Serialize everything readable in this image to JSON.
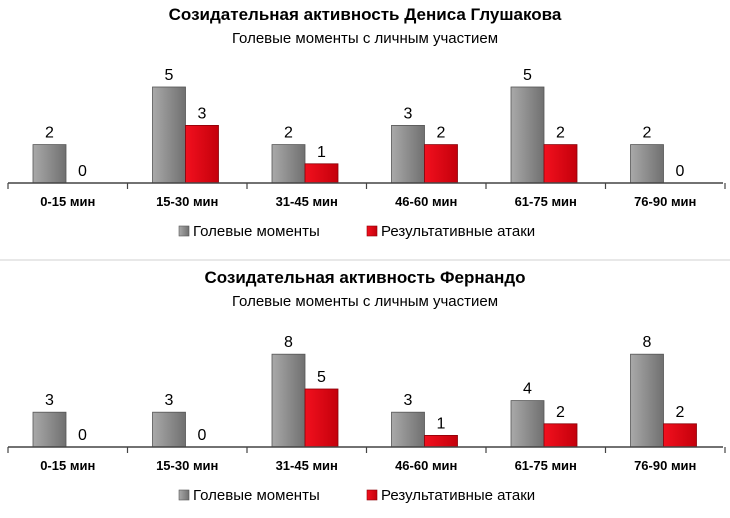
{
  "chart_data": [
    {
      "type": "bar",
      "title": "Созидательная активность Дениса Глушакова",
      "subtitle": "Голевые моменты с личным участием",
      "categories": [
        "0-15 мин",
        "15-30 мин",
        "31-45 мин",
        "46-60 мин",
        "61-75 мин",
        "76-90 мин"
      ],
      "series": [
        {
          "name": "Голевые моменты",
          "values": [
            2,
            5,
            2,
            3,
            5,
            2
          ],
          "color": "#8c8c8c"
        },
        {
          "name": "Результативные атаки",
          "values": [
            0,
            3,
            1,
            2,
            2,
            0
          ],
          "color": "#e3000f"
        }
      ],
      "ylim": [
        0,
        5
      ],
      "grid": false,
      "legend": "bottom"
    },
    {
      "type": "bar",
      "title": "Созидательная активность Фернандо",
      "subtitle": "Голевые моменты с личным участием",
      "categories": [
        "0-15 мин",
        "15-30 мин",
        "31-45 мин",
        "46-60 мин",
        "61-75 мин",
        "76-90 мин"
      ],
      "series": [
        {
          "name": "Голевые моменты",
          "values": [
            3,
            3,
            8,
            3,
            4,
            8
          ],
          "color": "#8c8c8c"
        },
        {
          "name": "Результативные атаки",
          "values": [
            0,
            0,
            5,
            1,
            2,
            2
          ],
          "color": "#e3000f"
        }
      ],
      "ylim": [
        0,
        8
      ],
      "grid": false,
      "legend": "bottom"
    }
  ]
}
